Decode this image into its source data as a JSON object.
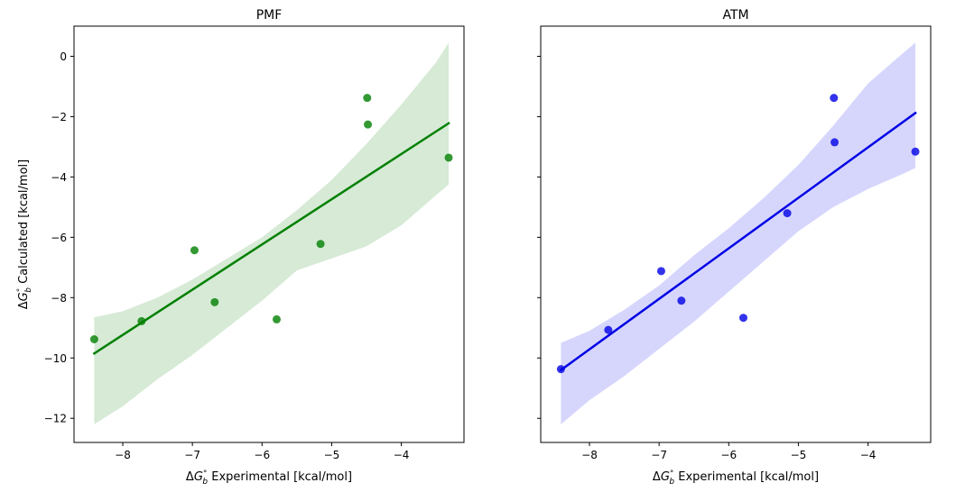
{
  "figure": {
    "shared_y_label": "ΔG°b Calculated [kcal/mol]"
  },
  "chart_data": [
    {
      "type": "scatter",
      "title": "PMF",
      "xlabel": "ΔG°b Experimental [kcal/mol]",
      "ylabel": "ΔG°b Calculated [kcal/mol]",
      "xlim": [
        -8.7,
        -3.1
      ],
      "ylim": [
        -12.8,
        1.0
      ],
      "xticks": [
        -8,
        -7,
        -6,
        -5,
        -4
      ],
      "yticks": [
        0,
        -2,
        -4,
        -6,
        -8,
        -10,
        -12
      ],
      "show_ytick_labels": true,
      "color": "#008000",
      "band_color": "#d6ead6",
      "points": [
        {
          "x": -8.41,
          "y": -9.38
        },
        {
          "x": -7.73,
          "y": -8.78
        },
        {
          "x": -6.97,
          "y": -6.43
        },
        {
          "x": -6.68,
          "y": -8.15
        },
        {
          "x": -5.79,
          "y": -8.72
        },
        {
          "x": -5.16,
          "y": -6.22
        },
        {
          "x": -4.49,
          "y": -1.38
        },
        {
          "x": -4.48,
          "y": -2.26
        },
        {
          "x": -3.32,
          "y": -3.36
        }
      ],
      "fit": {
        "x": [
          -8.41,
          -3.32
        ],
        "y": [
          -9.85,
          -2.22
        ]
      },
      "band": {
        "x": [
          -8.41,
          -8.0,
          -7.5,
          -7.0,
          -6.5,
          -6.0,
          -5.5,
          -5.0,
          -4.5,
          -4.0,
          -3.5,
          -3.32
        ],
        "upper": [
          -8.65,
          -8.45,
          -8.0,
          -7.4,
          -6.7,
          -6.0,
          -5.1,
          -4.1,
          -2.9,
          -1.6,
          -0.2,
          0.45
        ],
        "lower": [
          -12.2,
          -11.6,
          -10.7,
          -9.9,
          -9.0,
          -8.1,
          -7.1,
          -6.7,
          -6.3,
          -5.6,
          -4.6,
          -4.25
        ]
      }
    },
    {
      "type": "scatter",
      "title": "ATM",
      "xlabel": "ΔG°b Experimental [kcal/mol]",
      "ylabel": "",
      "xlim": [
        -8.7,
        -3.1
      ],
      "ylim": [
        -12.8,
        1.0
      ],
      "xticks": [
        -8,
        -7,
        -6,
        -5,
        -4
      ],
      "yticks": [
        0,
        -2,
        -4,
        -6,
        -8,
        -10,
        -12
      ],
      "show_ytick_labels": false,
      "color": "#0000e6",
      "band_color": "#d6d6fd",
      "points": [
        {
          "x": -8.41,
          "y": -10.37
        },
        {
          "x": -7.73,
          "y": -9.07
        },
        {
          "x": -6.97,
          "y": -7.12
        },
        {
          "x": -6.68,
          "y": -8.1
        },
        {
          "x": -5.79,
          "y": -8.67
        },
        {
          "x": -5.16,
          "y": -5.2
        },
        {
          "x": -4.49,
          "y": -1.38
        },
        {
          "x": -4.48,
          "y": -2.85
        },
        {
          "x": -3.32,
          "y": -3.16
        }
      ],
      "fit": {
        "x": [
          -8.41,
          -3.32
        ],
        "y": [
          -10.4,
          -1.88
        ]
      },
      "band": {
        "x": [
          -8.41,
          -8.0,
          -7.5,
          -7.0,
          -6.5,
          -6.0,
          -5.5,
          -5.0,
          -4.5,
          -4.0,
          -3.5,
          -3.32
        ],
        "upper": [
          -9.5,
          -9.1,
          -8.4,
          -7.6,
          -6.6,
          -5.7,
          -4.7,
          -3.6,
          -2.3,
          -0.9,
          0.1,
          0.45
        ],
        "lower": [
          -12.2,
          -11.4,
          -10.6,
          -9.7,
          -8.8,
          -7.8,
          -6.8,
          -5.8,
          -5.0,
          -4.4,
          -3.9,
          -3.7
        ]
      }
    }
  ]
}
